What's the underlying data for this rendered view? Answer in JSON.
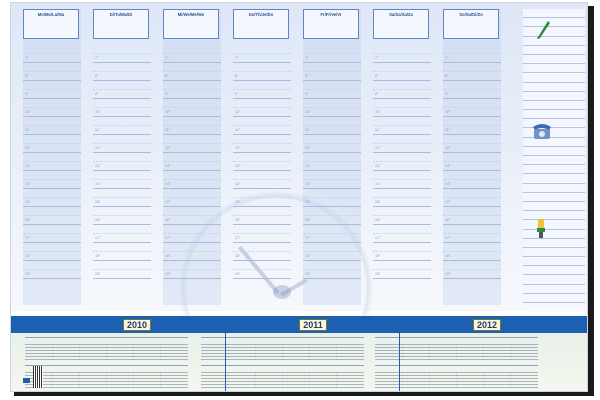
{
  "days": [
    {
      "label": "Mo/Mo/Lu/Ma"
    },
    {
      "label": "Di/Tu/Ma/Di"
    },
    {
      "label": "Mi/We/Me/Wo"
    },
    {
      "label": "Do/Th/Je/Do"
    },
    {
      "label": "Fr/Fr/Ve/Vr"
    },
    {
      "label": "Sa/Sa/Sa/Za"
    },
    {
      "label": "So/Su/Di/Zo"
    }
  ],
  "hours": [
    "7°",
    "8°",
    "9°",
    "10°",
    "11°",
    "12°",
    "13°",
    "14°",
    "15°",
    "16°",
    "17°",
    "18°",
    "19°"
  ],
  "years": [
    "2010",
    "2011",
    "2012"
  ],
  "notes_icons": [
    "pencil-icon",
    "telephone-icon",
    "paint-brush-icon"
  ]
}
